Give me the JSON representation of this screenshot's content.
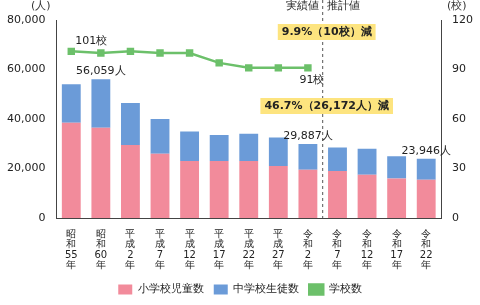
{
  "chart_data": {
    "type": "bar",
    "stacked": true,
    "grid": false,
    "legend": "bottom",
    "ylabel": "(人)",
    "y2label": "(校)",
    "categories": [
      "昭和55年",
      "昭和60年",
      "平成2年",
      "平成7年",
      "平成12年",
      "平成17年",
      "平成22年",
      "平成27年",
      "令和2年",
      "令和7年",
      "令和12年",
      "令和17年",
      "令和22年"
    ],
    "series": [
      {
        "name": "小学校児童数",
        "type": "bar",
        "color": "#f28b9b",
        "values": [
          38500,
          36500,
          29500,
          26000,
          23000,
          23000,
          23000,
          21000,
          19500,
          19000,
          17500,
          16000,
          15500
        ]
      },
      {
        "name": "中学校生徒数",
        "type": "bar",
        "color": "#6b9bd8",
        "values": [
          15500,
          19559,
          17000,
          14000,
          12000,
          10500,
          11000,
          11500,
          10387,
          9500,
          10500,
          9000,
          8446
        ]
      },
      {
        "name": "学校数",
        "type": "line",
        "axis": "y2",
        "color": "#6cc06a",
        "marker": "square",
        "values": [
          101,
          100,
          101,
          100,
          100,
          94,
          91,
          91,
          91,
          null,
          null,
          null,
          null
        ]
      }
    ],
    "ylim": [
      0,
      80000
    ],
    "yticks": [
      0,
      {
        "value": 20000,
        "label": "20,000"
      },
      {
        "value": 40000,
        "label": "40,000"
      },
      {
        "value": 60000,
        "label": "60,000"
      },
      {
        "value": 80000,
        "label": "80,000"
      }
    ],
    "y2lim": [
      0,
      120
    ],
    "y2ticks": [
      0,
      30,
      60,
      90,
      120
    ],
    "annotations": [
      {
        "text": "101校",
        "category": "昭和55年"
      },
      {
        "text": "56,059人",
        "category": "昭和60年"
      },
      {
        "text": "91校",
        "category": "令和2年"
      },
      {
        "text": "29,887人",
        "category": "令和2年"
      },
      {
        "text": "23,946人",
        "category": "令和22年"
      },
      {
        "text": "9.9%（10校）減",
        "category": "令和7年"
      },
      {
        "text": "46.7%（26,172人）減",
        "category": "令和7年"
      },
      {
        "text": "実績値",
        "category": "令和2年"
      },
      {
        "text": "推計値",
        "category": "令和7年"
      }
    ]
  }
}
